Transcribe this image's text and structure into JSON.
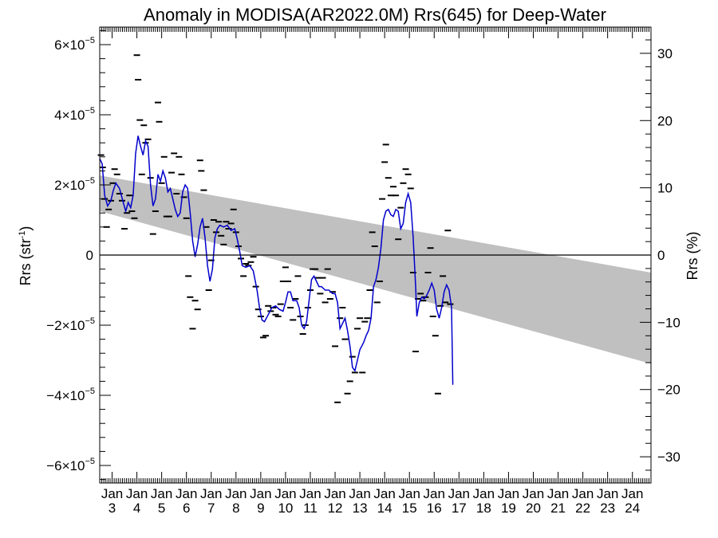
{
  "chart_data": {
    "type": "line",
    "title": "Anomaly in MODISA(AR2022.0M) Rrs(645) for Deep-Water",
    "ylabel_left": {
      "base": "Rrs (str",
      "sup": "-1",
      "end": ")"
    },
    "ylabel_right": "Rrs (%)",
    "x_axis": {
      "range": [
        2002.5,
        2024.75
      ],
      "major_label": "Jan",
      "years": [
        "3",
        "4",
        "5",
        "6",
        "7",
        "8",
        "9",
        "10",
        "11",
        "12",
        "13",
        "14",
        "15",
        "16",
        "17",
        "18",
        "19",
        "20",
        "21",
        "22",
        "23",
        "24"
      ]
    },
    "y_left": {
      "range": [
        -6.5e-05,
        6.5e-05
      ],
      "ticks": [
        {
          "value": 6e-05,
          "label": "6×10",
          "exp": "−5"
        },
        {
          "value": 4e-05,
          "label": "4×10",
          "exp": "−5"
        },
        {
          "value": 2e-05,
          "label": "2×10",
          "exp": "−5"
        },
        {
          "value": 0,
          "label": "0",
          "exp": ""
        },
        {
          "value": -2e-05,
          "label": "−2×10",
          "exp": "−5"
        },
        {
          "value": -4e-05,
          "label": "−4×10",
          "exp": "−5"
        },
        {
          "value": -6e-05,
          "label": "−6×10",
          "exp": "−5"
        }
      ]
    },
    "y_right": {
      "range": [
        -33.9,
        33.9
      ],
      "ticks": [
        {
          "value": 30,
          "label": "30"
        },
        {
          "value": 20,
          "label": "20"
        },
        {
          "value": 10,
          "label": "10"
        },
        {
          "value": 0,
          "label": "0"
        },
        {
          "value": -10,
          "label": "−10"
        },
        {
          "value": -20,
          "label": "−20"
        },
        {
          "value": -30,
          "label": "−30"
        }
      ]
    },
    "band": {
      "upper": [
        [
          2002.5,
          2.27e-05
        ],
        [
          2024.75,
          -5e-06
        ]
      ],
      "lower": [
        [
          2002.5,
          1.25e-05
        ],
        [
          2024.75,
          -3.1e-05
        ]
      ],
      "color": "#c0c0c0"
    },
    "zero_line": true,
    "series": [
      {
        "kind": "smooth",
        "color": "#0000cc",
        "points": [
          [
            2002.5,
            2.75e-05
          ],
          [
            2002.6,
            2.6e-05
          ],
          [
            2002.7,
            1.7e-05
          ],
          [
            2002.82,
            1.4e-05
          ],
          [
            2002.95,
            1.55e-05
          ],
          [
            2003.05,
            1.85e-05
          ],
          [
            2003.15,
            2.05e-05
          ],
          [
            2003.3,
            1.9e-05
          ],
          [
            2003.45,
            1.5e-05
          ],
          [
            2003.55,
            1.25e-05
          ],
          [
            2003.65,
            1.5e-05
          ],
          [
            2003.75,
            1.35e-05
          ],
          [
            2003.85,
            1.7e-05
          ],
          [
            2003.95,
            2.9e-05
          ],
          [
            2004.05,
            3.4e-05
          ],
          [
            2004.15,
            3.1e-05
          ],
          [
            2004.25,
            2.85e-05
          ],
          [
            2004.35,
            3.25e-05
          ],
          [
            2004.45,
            3.1e-05
          ],
          [
            2004.55,
            2e-05
          ],
          [
            2004.65,
            1.4e-05
          ],
          [
            2004.75,
            1.6e-05
          ],
          [
            2004.85,
            2.3e-05
          ],
          [
            2004.95,
            2.1e-05
          ],
          [
            2005.05,
            2.4e-05
          ],
          [
            2005.15,
            2.2e-05
          ],
          [
            2005.25,
            1.8e-05
          ],
          [
            2005.35,
            1.9e-05
          ],
          [
            2005.45,
            1.6e-05
          ],
          [
            2005.55,
            1.3e-05
          ],
          [
            2005.65,
            1.1e-05
          ],
          [
            2005.75,
            1.2e-05
          ],
          [
            2005.85,
            1.8e-05
          ],
          [
            2005.95,
            2e-05
          ],
          [
            2006.05,
            1.9e-05
          ],
          [
            2006.15,
            1.2e-05
          ],
          [
            2006.25,
            4e-06
          ],
          [
            2006.35,
            -5e-07
          ],
          [
            2006.45,
            3e-06
          ],
          [
            2006.55,
            8e-06
          ],
          [
            2006.65,
            1.05e-05
          ],
          [
            2006.75,
            5e-06
          ],
          [
            2006.85,
            -3e-06
          ],
          [
            2006.95,
            -7.5e-06
          ],
          [
            2007.05,
            -4e-06
          ],
          [
            2007.15,
            5e-06
          ],
          [
            2007.25,
            7.5e-06
          ],
          [
            2007.35,
            8.5e-06
          ],
          [
            2007.5,
            8e-06
          ],
          [
            2007.65,
            8.5e-06
          ],
          [
            2007.8,
            7e-06
          ],
          [
            2007.95,
            7.5e-06
          ],
          [
            2008.05,
            4.5e-06
          ],
          [
            2008.15,
            1e-06
          ],
          [
            2008.25,
            -3e-06
          ],
          [
            2008.4,
            -3.5e-06
          ],
          [
            2008.55,
            -3e-06
          ],
          [
            2008.7,
            -4.5e-06
          ],
          [
            2008.85,
            -1e-05
          ],
          [
            2008.95,
            -1.5e-05
          ],
          [
            2009.05,
            -1.85e-05
          ],
          [
            2009.15,
            -1.9e-05
          ],
          [
            2009.3,
            -1.7e-05
          ],
          [
            2009.45,
            -1.5e-05
          ],
          [
            2009.6,
            -1.45e-05
          ],
          [
            2009.75,
            -1.55e-05
          ],
          [
            2009.9,
            -1.6e-05
          ],
          [
            2010.0,
            -1.35e-05
          ],
          [
            2010.1,
            -1.05e-05
          ],
          [
            2010.2,
            -1.05e-05
          ],
          [
            2010.3,
            -1.3e-05
          ],
          [
            2010.45,
            -1.3e-05
          ],
          [
            2010.55,
            -1.5e-05
          ],
          [
            2010.65,
            -2e-05
          ],
          [
            2010.75,
            -2.1e-05
          ],
          [
            2010.85,
            -1.9e-05
          ],
          [
            2010.95,
            -1.3e-05
          ],
          [
            2011.05,
            -7e-06
          ],
          [
            2011.15,
            -6e-06
          ],
          [
            2011.25,
            -7.5e-06
          ],
          [
            2011.35,
            -9e-06
          ],
          [
            2011.45,
            -9e-06
          ],
          [
            2011.6,
            -1e-05
          ],
          [
            2011.75,
            -1e-05
          ],
          [
            2011.9,
            -1.1e-05
          ],
          [
            2012.0,
            -1.1e-05
          ],
          [
            2012.1,
            -1.35e-05
          ],
          [
            2012.2,
            -2.1e-05
          ],
          [
            2012.3,
            -1.95e-05
          ],
          [
            2012.4,
            -1.8e-05
          ],
          [
            2012.5,
            -2.15e-05
          ],
          [
            2012.6,
            -2.6e-05
          ],
          [
            2012.7,
            -3.2e-05
          ],
          [
            2012.8,
            -3.3e-05
          ],
          [
            2012.9,
            -3e-05
          ],
          [
            2013.0,
            -2.7e-05
          ],
          [
            2013.15,
            -2.5e-05
          ],
          [
            2013.25,
            -2.3e-05
          ],
          [
            2013.35,
            -2.15e-05
          ],
          [
            2013.45,
            -1.8e-05
          ],
          [
            2013.55,
            -9e-06
          ],
          [
            2013.65,
            -7e-06
          ],
          [
            2013.75,
            -3.5e-06
          ],
          [
            2013.85,
            2e-06
          ],
          [
            2013.95,
            1e-05
          ],
          [
            2014.05,
            1.25e-05
          ],
          [
            2014.15,
            1.3e-05
          ],
          [
            2014.25,
            1.15e-05
          ],
          [
            2014.35,
            1.1e-05
          ],
          [
            2014.45,
            1.3e-05
          ],
          [
            2014.55,
            1.25e-05
          ],
          [
            2014.65,
            7.5e-06
          ],
          [
            2014.75,
            9e-06
          ],
          [
            2014.85,
            1.5e-05
          ],
          [
            2014.95,
            1.75e-05
          ],
          [
            2015.05,
            1.5e-05
          ],
          [
            2015.15,
            5e-06
          ],
          [
            2015.25,
            -9e-06
          ],
          [
            2015.3,
            -1.75e-05
          ],
          [
            2015.4,
            -1.35e-05
          ],
          [
            2015.5,
            -1.2e-05
          ],
          [
            2015.6,
            -1.25e-05
          ],
          [
            2015.7,
            -1.15e-05
          ],
          [
            2015.8,
            -1e-05
          ],
          [
            2015.9,
            -8e-06
          ],
          [
            2016.0,
            -1e-05
          ],
          [
            2016.1,
            -1.55e-05
          ],
          [
            2016.2,
            -1.8e-05
          ],
          [
            2016.3,
            -1.5e-05
          ],
          [
            2016.4,
            -1.05e-05
          ],
          [
            2016.5,
            -8.5e-06
          ],
          [
            2016.6,
            -1e-05
          ],
          [
            2016.7,
            -1.5e-05
          ],
          [
            2016.75,
            -3.7e-05
          ]
        ]
      }
    ],
    "monthly_markers": [
      [
        2002.55,
        2.85e-05
      ],
      [
        2002.62,
        2.5e-05
      ],
      [
        2002.7,
        1.6e-05
      ],
      [
        2002.78,
        8e-06
      ],
      [
        2002.86,
        1.3e-05
      ],
      [
        2002.95,
        1.55e-05
      ],
      [
        2003.03,
        2.05e-05
      ],
      [
        2003.1,
        2.45e-05
      ],
      [
        2003.2,
        2.3e-05
      ],
      [
        2003.3,
        1.75e-05
      ],
      [
        2003.4,
        1.55e-05
      ],
      [
        2003.5,
        7.5e-06
      ],
      [
        2003.6,
        1.2e-05
      ],
      [
        2003.7,
        1.7e-05
      ],
      [
        2003.8,
        1.25e-05
      ],
      [
        2003.9,
        1.05e-05
      ],
      [
        2004.0,
        5.7e-05
      ],
      [
        2004.05,
        5e-05
      ],
      [
        2004.12,
        3.85e-05
      ],
      [
        2004.2,
        2.3e-05
      ],
      [
        2004.28,
        3.7e-05
      ],
      [
        2004.35,
        3.2e-05
      ],
      [
        2004.45,
        3.3e-05
      ],
      [
        2004.55,
        2.2e-05
      ],
      [
        2004.65,
        6e-06
      ],
      [
        2004.75,
        1.25e-05
      ],
      [
        2004.85,
        4.35e-05
      ],
      [
        2004.9,
        3.8e-05
      ],
      [
        2005.0,
        2.05e-05
      ],
      [
        2005.1,
        2.8e-05
      ],
      [
        2005.2,
        1.1e-05
      ],
      [
        2005.3,
        1.1e-05
      ],
      [
        2005.4,
        2.35e-05
      ],
      [
        2005.5,
        2.9e-05
      ],
      [
        2005.6,
        1.75e-05
      ],
      [
        2005.7,
        2.8e-05
      ],
      [
        2005.8,
        2.3e-05
      ],
      [
        2005.9,
        1.65e-05
      ],
      [
        2006.0,
        1.05e-05
      ],
      [
        2006.08,
        -6e-06
      ],
      [
        2006.15,
        -1.2e-05
      ],
      [
        2006.25,
        -2.1e-05
      ],
      [
        2006.35,
        -1.3e-05
      ],
      [
        2006.45,
        -1.55e-05
      ],
      [
        2006.55,
        2.7e-05
      ],
      [
        2006.6,
        2.4e-05
      ],
      [
        2006.7,
        1.85e-05
      ],
      [
        2006.8,
        8e-06
      ],
      [
        2006.9,
        -1e-05
      ],
      [
        2007.0,
        -1.5e-06
      ],
      [
        2007.1,
        1e-05
      ],
      [
        2007.2,
        6.5e-06
      ],
      [
        2007.3,
        9.5e-06
      ],
      [
        2007.4,
        5.5e-06
      ],
      [
        2007.5,
        3e-06
      ],
      [
        2007.6,
        9.5e-06
      ],
      [
        2007.7,
        7.5e-06
      ],
      [
        2007.8,
        9e-06
      ],
      [
        2007.9,
        1.3e-05
      ],
      [
        2008.0,
        6.5e-06
      ],
      [
        2008.1,
        2.5e-06
      ],
      [
        2008.2,
        -1e-06
      ],
      [
        2008.3,
        -6e-06
      ],
      [
        2008.4,
        -2.5e-06
      ],
      [
        2008.5,
        -3e-06
      ],
      [
        2008.6,
        -2e-06
      ],
      [
        2008.7,
        -5e-07
      ],
      [
        2008.8,
        -9e-06
      ],
      [
        2008.9,
        -1.55e-05
      ],
      [
        2009.0,
        -1.75e-05
      ],
      [
        2009.1,
        -2.35e-05
      ],
      [
        2009.2,
        -2.3e-05
      ],
      [
        2009.3,
        -1.45e-05
      ],
      [
        2009.4,
        -1.6e-05
      ],
      [
        2009.5,
        -1.5e-05
      ],
      [
        2009.6,
        -1.7e-05
      ],
      [
        2009.7,
        -1.75e-05
      ],
      [
        2009.8,
        -1.4e-05
      ],
      [
        2009.9,
        -7.5e-06
      ],
      [
        2010.0,
        -3.5e-06
      ],
      [
        2010.1,
        -7.5e-06
      ],
      [
        2010.2,
        -1.5e-05
      ],
      [
        2010.3,
        -1.85e-05
      ],
      [
        2010.4,
        -1.25e-05
      ],
      [
        2010.5,
        -6e-06
      ],
      [
        2010.6,
        -1.75e-05
      ],
      [
        2010.7,
        -2.25e-05
      ],
      [
        2010.8,
        -2e-05
      ],
      [
        2010.9,
        -1.5e-05
      ],
      [
        2011.0,
        -1e-05
      ],
      [
        2011.1,
        -4e-06
      ],
      [
        2011.2,
        -4e-06
      ],
      [
        2011.3,
        -6.5e-06
      ],
      [
        2011.4,
        -1.1e-05
      ],
      [
        2011.5,
        -6.5e-06
      ],
      [
        2011.6,
        -1.35e-05
      ],
      [
        2011.7,
        -4e-06
      ],
      [
        2011.8,
        -1.25e-05
      ],
      [
        2011.9,
        -1.05e-05
      ],
      [
        2012.0,
        -2.6e-05
      ],
      [
        2012.1,
        -4.2e-05
      ],
      [
        2012.2,
        -1.8e-05
      ],
      [
        2012.3,
        -1.5e-05
      ],
      [
        2012.4,
        -2.4e-05
      ],
      [
        2012.5,
        -3.95e-05
      ],
      [
        2012.6,
        -3.6e-05
      ],
      [
        2012.7,
        -2.9e-05
      ],
      [
        2012.8,
        -3.35e-05
      ],
      [
        2012.9,
        -2.1e-05
      ],
      [
        2013.0,
        -1.8e-05
      ],
      [
        2013.1,
        -3.35e-05
      ],
      [
        2013.2,
        -1.9e-05
      ],
      [
        2013.3,
        -1.8e-05
      ],
      [
        2013.4,
        -1e-05
      ],
      [
        2013.5,
        6.5e-06
      ],
      [
        2013.6,
        2.5e-06
      ],
      [
        2013.7,
        -1.35e-05
      ],
      [
        2013.8,
        -7.5e-06
      ],
      [
        2013.9,
        1.6e-05
      ],
      [
        2014.0,
        2.65e-05
      ],
      [
        2014.05,
        3.15e-05
      ],
      [
        2014.15,
        2.2e-05
      ],
      [
        2014.25,
        1.7e-05
      ],
      [
        2014.35,
        1.95e-05
      ],
      [
        2014.45,
        1.7e-05
      ],
      [
        2014.55,
        4.5e-06
      ],
      [
        2014.65,
        1.35e-05
      ],
      [
        2014.75,
        2.05e-05
      ],
      [
        2014.85,
        2.45e-05
      ],
      [
        2014.95,
        2.3e-05
      ],
      [
        2015.05,
        1.9e-05
      ],
      [
        2015.15,
        -5e-06
      ],
      [
        2015.25,
        -2.75e-05
      ],
      [
        2015.35,
        -1.25e-05
      ],
      [
        2015.45,
        -1.1e-05
      ],
      [
        2015.55,
        -1.3e-05
      ],
      [
        2015.65,
        -1.2e-05
      ],
      [
        2015.75,
        -5e-06
      ],
      [
        2015.85,
        2e-06
      ],
      [
        2015.95,
        -1.75e-05
      ],
      [
        2016.05,
        -2.3e-05
      ],
      [
        2016.15,
        -3.95e-05
      ],
      [
        2016.25,
        -1.45e-05
      ],
      [
        2016.35,
        -6e-06
      ],
      [
        2016.45,
        -1.35e-05
      ],
      [
        2016.55,
        7e-06
      ],
      [
        2016.65,
        -1.4e-05
      ]
    ]
  }
}
